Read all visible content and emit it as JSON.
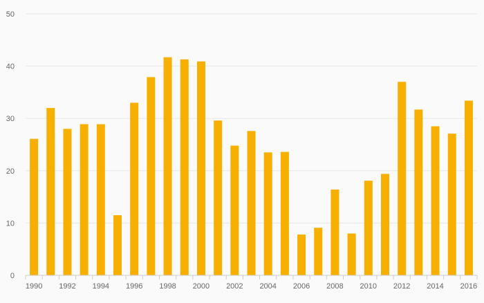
{
  "chart_data": {
    "type": "bar",
    "title": "",
    "xlabel": "",
    "ylabel": "",
    "ylim": [
      0,
      50
    ],
    "y_ticks": [
      0,
      10,
      20,
      30,
      40,
      50
    ],
    "grid": true,
    "legend": "none",
    "bar_color": "#f8b000",
    "categories": [
      "1990",
      "1991",
      "1992",
      "1993",
      "1994",
      "1995",
      "1996",
      "1997",
      "1998",
      "1999",
      "2000",
      "2001",
      "2002",
      "2003",
      "2004",
      "2005",
      "2006",
      "2007",
      "2008",
      "2009",
      "2010",
      "2011",
      "2012",
      "2013",
      "2014",
      "2015",
      "2016"
    ],
    "x_tick_labels": [
      "1990",
      "1992",
      "1994",
      "1996",
      "1998",
      "2000",
      "2002",
      "2004",
      "2006",
      "2008",
      "2010",
      "2012",
      "2014",
      "2016"
    ],
    "values": [
      26.1,
      32.0,
      28.0,
      28.9,
      28.9,
      11.5,
      33.0,
      37.9,
      41.7,
      41.3,
      40.9,
      29.6,
      24.8,
      27.6,
      23.5,
      23.6,
      7.8,
      9.1,
      16.4,
      8.0,
      18.1,
      19.4,
      37.0,
      31.7,
      28.5,
      27.1,
      33.4
    ]
  }
}
